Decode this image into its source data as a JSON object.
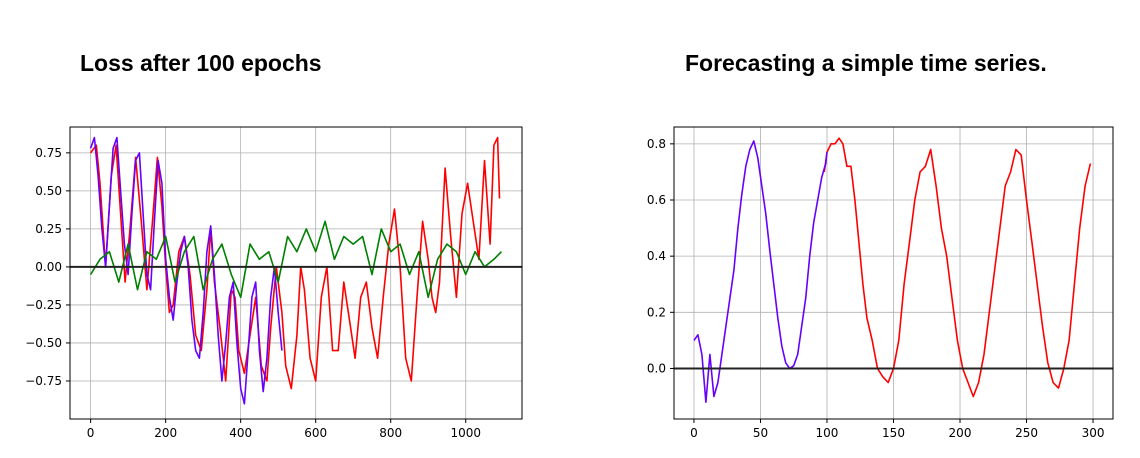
{
  "chart_data": [
    {
      "type": "line",
      "title": "Loss after 100 epochs",
      "xlabel": "",
      "ylabel": "",
      "xlim": [
        -55,
        1150
      ],
      "ylim": [
        -1.0,
        0.92
      ],
      "xticks": [
        0,
        200,
        400,
        600,
        800,
        1000
      ],
      "yticks": [
        -0.75,
        -0.5,
        -0.25,
        0.0,
        0.25,
        0.5,
        0.75
      ],
      "xtick_labels": [
        "0",
        "200",
        "400",
        "600",
        "800",
        "1000"
      ],
      "ytick_labels": [
        "−0.75",
        "−0.50",
        "−0.25",
        "0.00",
        "0.25",
        "0.50",
        "0.75"
      ],
      "grid": true,
      "zero_line": true,
      "series": [
        {
          "color": "#ff0000",
          "x": [
            0,
            15,
            25,
            40,
            55,
            68,
            80,
            92,
            105,
            120,
            135,
            150,
            165,
            178,
            190,
            200,
            210,
            220,
            235,
            250,
            265,
            280,
            295,
            310,
            320,
            330,
            345,
            360,
            375,
            385,
            395,
            410,
            425,
            440,
            455,
            470,
            480,
            495,
            510,
            520,
            535,
            550,
            560,
            570,
            585,
            600,
            615,
            630,
            645,
            660,
            675,
            690,
            705,
            720,
            735,
            750,
            765,
            780,
            795,
            810,
            825,
            840,
            855,
            870,
            885,
            900,
            910,
            920,
            930,
            945,
            960,
            975,
            990,
            1005,
            1020,
            1035,
            1050,
            1065,
            1075,
            1085,
            1090
          ],
          "y": [
            0.75,
            0.8,
            0.55,
            0.0,
            0.6,
            0.8,
            0.35,
            -0.1,
            0.25,
            0.72,
            0.3,
            -0.15,
            0.3,
            0.72,
            0.4,
            0.0,
            -0.3,
            -0.25,
            0.1,
            0.2,
            -0.05,
            -0.45,
            -0.55,
            -0.15,
            0.25,
            -0.1,
            -0.4,
            -0.75,
            -0.15,
            -0.2,
            -0.55,
            -0.7,
            -0.45,
            -0.2,
            -0.65,
            -0.75,
            -0.4,
            0.0,
            -0.3,
            -0.65,
            -0.8,
            -0.45,
            0.0,
            -0.15,
            -0.6,
            -0.75,
            -0.2,
            0.0,
            -0.55,
            -0.55,
            -0.1,
            -0.35,
            -0.6,
            -0.2,
            -0.1,
            -0.4,
            -0.6,
            -0.2,
            0.15,
            0.38,
            0.0,
            -0.6,
            -0.75,
            -0.2,
            0.3,
            0.05,
            -0.2,
            -0.3,
            -0.1,
            0.65,
            0.2,
            -0.2,
            0.35,
            0.55,
            0.3,
            0.05,
            0.7,
            0.15,
            0.8,
            0.85,
            0.45
          ]
        },
        {
          "color": "#6600ff",
          "x": [
            0,
            10,
            20,
            30,
            40,
            50,
            60,
            70,
            80,
            90,
            100,
            110,
            120,
            130,
            140,
            150,
            160,
            170,
            180,
            190,
            200,
            210,
            220,
            230,
            240,
            250,
            260,
            270,
            280,
            290,
            300,
            310,
            320,
            330,
            340,
            350,
            360,
            370,
            380,
            390,
            400,
            410,
            420,
            430,
            440,
            450,
            460,
            470,
            480,
            490,
            500,
            510
          ],
          "y": [
            0.78,
            0.85,
            0.6,
            0.25,
            0.0,
            0.4,
            0.78,
            0.85,
            0.5,
            0.15,
            -0.05,
            0.35,
            0.7,
            0.75,
            0.35,
            -0.05,
            -0.15,
            0.3,
            0.7,
            0.55,
            0.05,
            -0.2,
            -0.35,
            -0.1,
            0.1,
            0.2,
            0.0,
            -0.35,
            -0.55,
            -0.6,
            -0.3,
            0.1,
            0.27,
            -0.05,
            -0.45,
            -0.75,
            -0.5,
            -0.2,
            -0.1,
            -0.5,
            -0.8,
            -0.9,
            -0.55,
            -0.2,
            -0.1,
            -0.55,
            -0.82,
            -0.6,
            -0.2,
            0.0,
            -0.3,
            -0.55
          ]
        },
        {
          "color": "#008000",
          "x": [
            0,
            25,
            50,
            75,
            100,
            125,
            150,
            175,
            200,
            225,
            250,
            275,
            300,
            325,
            350,
            375,
            400,
            425,
            450,
            475,
            500,
            525,
            550,
            575,
            600,
            625,
            650,
            675,
            700,
            725,
            750,
            775,
            800,
            825,
            850,
            875,
            900,
            925,
            950,
            975,
            1000,
            1025,
            1050,
            1075,
            1095
          ],
          "y": [
            -0.05,
            0.05,
            0.1,
            -0.1,
            0.15,
            -0.15,
            0.1,
            0.05,
            0.2,
            -0.1,
            0.1,
            0.2,
            -0.15,
            0.05,
            0.15,
            -0.05,
            -0.2,
            0.15,
            0.05,
            0.1,
            -0.1,
            0.2,
            0.1,
            0.25,
            0.1,
            0.3,
            0.05,
            0.2,
            0.15,
            0.2,
            -0.05,
            0.25,
            0.1,
            0.15,
            -0.05,
            0.1,
            -0.2,
            0.05,
            0.15,
            0.1,
            -0.05,
            0.1,
            0.0,
            0.05,
            0.1
          ]
        }
      ]
    },
    {
      "type": "line",
      "title": "Forecasting a simple time series.",
      "xlabel": "",
      "ylabel": "",
      "xlim": [
        -15,
        315
      ],
      "ylim": [
        -0.18,
        0.86
      ],
      "xticks": [
        0,
        50,
        100,
        150,
        200,
        250,
        300
      ],
      "yticks": [
        0.0,
        0.2,
        0.4,
        0.6,
        0.8
      ],
      "xtick_labels": [
        "0",
        "50",
        "100",
        "150",
        "200",
        "250",
        "300"
      ],
      "ytick_labels": [
        "0.0",
        "0.2",
        "0.4",
        "0.6",
        "0.8"
      ],
      "grid": true,
      "zero_line": true,
      "series": [
        {
          "color": "#ff0000",
          "x": [
            98,
            100,
            103,
            106,
            109,
            112,
            115,
            118,
            121,
            124,
            127,
            130,
            134,
            138,
            142,
            146,
            150,
            154,
            158,
            162,
            166,
            170,
            174,
            178,
            182,
            186,
            190,
            194,
            198,
            202,
            206,
            210,
            214,
            218,
            222,
            226,
            230,
            234,
            238,
            242,
            246,
            250,
            254,
            258,
            262,
            266,
            270,
            274,
            278,
            282,
            286,
            290,
            294,
            298
          ],
          "y": [
            0.7,
            0.77,
            0.8,
            0.8,
            0.82,
            0.8,
            0.72,
            0.72,
            0.6,
            0.45,
            0.3,
            0.18,
            0.1,
            0.0,
            -0.03,
            -0.05,
            0.0,
            0.1,
            0.3,
            0.45,
            0.6,
            0.7,
            0.72,
            0.78,
            0.65,
            0.5,
            0.4,
            0.25,
            0.1,
            0.0,
            -0.05,
            -0.1,
            -0.05,
            0.05,
            0.2,
            0.35,
            0.5,
            0.65,
            0.7,
            0.78,
            0.76,
            0.6,
            0.45,
            0.3,
            0.15,
            0.02,
            -0.05,
            -0.07,
            0.0,
            0.1,
            0.3,
            0.5,
            0.65,
            0.73
          ]
        },
        {
          "color": "#6600ff",
          "x": [
            0,
            3,
            6,
            9,
            12,
            15,
            18,
            21,
            24,
            27,
            30,
            33,
            36,
            39,
            42,
            45,
            48,
            51,
            54,
            57,
            60,
            63,
            66,
            69,
            72,
            75,
            78,
            81,
            84,
            87,
            90,
            93,
            96,
            99,
            100
          ],
          "y": [
            0.1,
            0.12,
            0.05,
            -0.12,
            0.05,
            -0.1,
            -0.05,
            0.05,
            0.15,
            0.25,
            0.35,
            0.5,
            0.62,
            0.72,
            0.78,
            0.81,
            0.75,
            0.65,
            0.55,
            0.42,
            0.3,
            0.18,
            0.08,
            0.02,
            0.0,
            0.01,
            0.05,
            0.15,
            0.25,
            0.4,
            0.52,
            0.6,
            0.68,
            0.73,
            0.77
          ]
        }
      ]
    }
  ]
}
